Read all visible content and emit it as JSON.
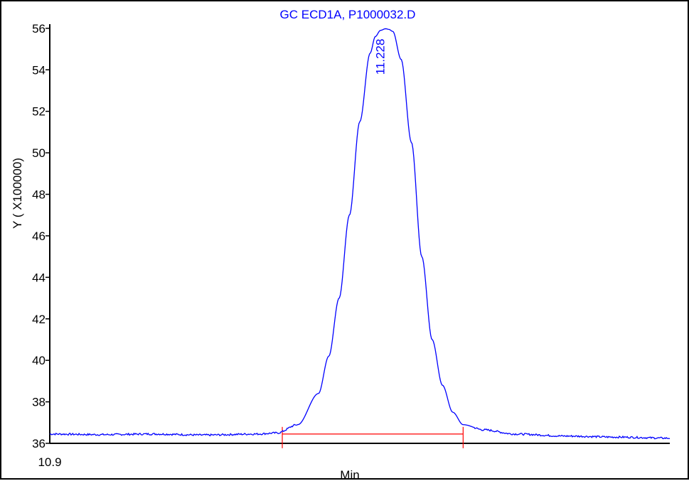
{
  "chart_data": {
    "type": "line",
    "title": "GC ECD1A, P1000032.D",
    "xlabel": "Min",
    "ylabel": "Y ( X100000)",
    "x_tick_labels": [
      "10.9"
    ],
    "y_ticks": [
      36,
      38,
      40,
      42,
      44,
      46,
      48,
      50,
      52,
      54,
      56
    ],
    "ylim": [
      36,
      56.2
    ],
    "xlim": [
      10.9,
      11.5
    ],
    "peak_label": "11.228",
    "peak": {
      "x": 11.228,
      "y": 55.95
    },
    "integration_baseline": {
      "x_start": 11.125,
      "x_end": 11.3,
      "y": 36.45
    },
    "grid": false,
    "series": [
      {
        "x": [
          10.9,
          10.95,
          11.0,
          11.05,
          11.1,
          11.12,
          11.14,
          11.16,
          11.17,
          11.18,
          11.19,
          11.2,
          11.21,
          11.215,
          11.22,
          11.225,
          11.228,
          11.232,
          11.24,
          11.25,
          11.26,
          11.27,
          11.28,
          11.29,
          11.3,
          11.32,
          11.35,
          11.4,
          11.45,
          11.5
        ],
        "y": [
          36.45,
          36.42,
          36.45,
          36.4,
          36.45,
          36.5,
          36.9,
          38.4,
          40.2,
          43.0,
          47.0,
          51.5,
          54.8,
          55.6,
          55.9,
          55.98,
          55.95,
          55.85,
          54.5,
          50.5,
          45.0,
          41.0,
          38.8,
          37.5,
          36.9,
          36.65,
          36.45,
          36.35,
          36.3,
          36.25
        ],
        "color": "#0000ff"
      }
    ],
    "colors": {
      "trace": "#0000ff",
      "baseline": "#ff0000",
      "axis": "#000000"
    }
  }
}
